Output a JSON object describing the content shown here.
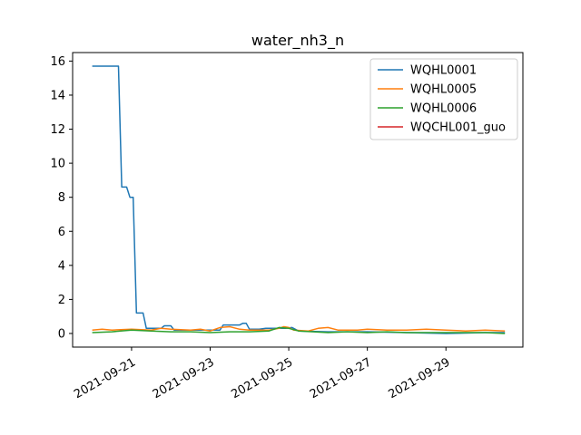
{
  "chart_data": {
    "type": "line",
    "title": "water_nh3_n",
    "xlabel": "",
    "ylabel": "",
    "x_axis_type": "date",
    "xlim": [
      "2021-09-19T12:00",
      "2021-09-30T23:00"
    ],
    "ylim": [
      -0.8,
      16.5
    ],
    "x_ticks": [
      "2021-09-21",
      "2021-09-23",
      "2021-09-25",
      "2021-09-27",
      "2021-09-29"
    ],
    "y_ticks": [
      0,
      2,
      4,
      6,
      8,
      10,
      12,
      14,
      16
    ],
    "grid": false,
    "legend_position": "top-right",
    "series": [
      {
        "name": "WQHL0001",
        "color": "#1f77b4",
        "points": [
          [
            "2021-09-20T00:00",
            15.7
          ],
          [
            "2021-09-20T16:00",
            15.7
          ],
          [
            "2021-09-20T18:00",
            8.6
          ],
          [
            "2021-09-20T21:00",
            8.6
          ],
          [
            "2021-09-20T23:00",
            8.0
          ],
          [
            "2021-09-21T01:00",
            8.0
          ],
          [
            "2021-09-21T03:00",
            1.2
          ],
          [
            "2021-09-21T07:00",
            1.2
          ],
          [
            "2021-09-21T09:00",
            0.3
          ],
          [
            "2021-09-21T18:00",
            0.3
          ],
          [
            "2021-09-21T20:00",
            0.45
          ],
          [
            "2021-09-22T00:00",
            0.45
          ],
          [
            "2021-09-22T02:00",
            0.2
          ],
          [
            "2021-09-23T06:00",
            0.2
          ],
          [
            "2021-09-23T08:00",
            0.5
          ],
          [
            "2021-09-23T18:00",
            0.5
          ],
          [
            "2021-09-23T20:00",
            0.6
          ],
          [
            "2021-09-23T22:00",
            0.6
          ],
          [
            "2021-09-24T00:00",
            0.25
          ],
          [
            "2021-09-24T06:00",
            0.25
          ],
          [
            "2021-09-24T10:00",
            0.3
          ],
          [
            "2021-09-24T22:00",
            0.3
          ],
          [
            "2021-09-25T02:00",
            0.35
          ],
          [
            "2021-09-25T06:00",
            0.15
          ],
          [
            "2021-09-26T00:00",
            0.1
          ],
          [
            "2021-09-27T00:00",
            0.1
          ],
          [
            "2021-09-28T00:00",
            0.05
          ],
          [
            "2021-09-29T00:00",
            0.0
          ],
          [
            "2021-09-30T00:00",
            0.05
          ],
          [
            "2021-09-30T12:00",
            0.05
          ]
        ]
      },
      {
        "name": "WQHL0005",
        "color": "#ff7f0e",
        "points": [
          [
            "2021-09-20T00:00",
            0.2
          ],
          [
            "2021-09-20T06:00",
            0.25
          ],
          [
            "2021-09-20T12:00",
            0.2
          ],
          [
            "2021-09-21T00:00",
            0.25
          ],
          [
            "2021-09-21T12:00",
            0.2
          ],
          [
            "2021-09-21T18:00",
            0.3
          ],
          [
            "2021-09-22T00:00",
            0.25
          ],
          [
            "2021-09-22T12:00",
            0.2
          ],
          [
            "2021-09-22T18:00",
            0.25
          ],
          [
            "2021-09-23T00:00",
            0.15
          ],
          [
            "2021-09-23T06:00",
            0.35
          ],
          [
            "2021-09-23T12:00",
            0.4
          ],
          [
            "2021-09-23T18:00",
            0.25
          ],
          [
            "2021-09-24T00:00",
            0.2
          ],
          [
            "2021-09-24T12:00",
            0.2
          ],
          [
            "2021-09-24T18:00",
            0.3
          ],
          [
            "2021-09-24T21:00",
            0.4
          ],
          [
            "2021-09-25T00:00",
            0.35
          ],
          [
            "2021-09-25T03:00",
            0.2
          ],
          [
            "2021-09-25T12:00",
            0.15
          ],
          [
            "2021-09-25T18:00",
            0.3
          ],
          [
            "2021-09-26T00:00",
            0.35
          ],
          [
            "2021-09-26T06:00",
            0.2
          ],
          [
            "2021-09-26T18:00",
            0.2
          ],
          [
            "2021-09-27T00:00",
            0.25
          ],
          [
            "2021-09-27T12:00",
            0.2
          ],
          [
            "2021-09-28T00:00",
            0.2
          ],
          [
            "2021-09-28T12:00",
            0.25
          ],
          [
            "2021-09-29T00:00",
            0.2
          ],
          [
            "2021-09-29T12:00",
            0.15
          ],
          [
            "2021-09-30T00:00",
            0.2
          ],
          [
            "2021-09-30T12:00",
            0.15
          ]
        ]
      },
      {
        "name": "WQHL0006",
        "color": "#2ca02c",
        "points": [
          [
            "2021-09-20T00:00",
            0.05
          ],
          [
            "2021-09-20T12:00",
            0.1
          ],
          [
            "2021-09-21T00:00",
            0.2
          ],
          [
            "2021-09-21T12:00",
            0.15
          ],
          [
            "2021-09-22T00:00",
            0.1
          ],
          [
            "2021-09-22T12:00",
            0.1
          ],
          [
            "2021-09-23T00:00",
            0.05
          ],
          [
            "2021-09-23T12:00",
            0.1
          ],
          [
            "2021-09-24T00:00",
            0.1
          ],
          [
            "2021-09-24T12:00",
            0.15
          ],
          [
            "2021-09-24T18:00",
            0.35
          ],
          [
            "2021-09-25T00:00",
            0.3
          ],
          [
            "2021-09-25T06:00",
            0.15
          ],
          [
            "2021-09-26T00:00",
            0.05
          ],
          [
            "2021-09-26T12:00",
            0.1
          ],
          [
            "2021-09-27T00:00",
            0.05
          ],
          [
            "2021-09-27T12:00",
            0.1
          ],
          [
            "2021-09-28T00:00",
            0.05
          ],
          [
            "2021-09-28T12:00",
            0.05
          ],
          [
            "2021-09-29T00:00",
            0.05
          ],
          [
            "2021-09-29T12:00",
            0.05
          ],
          [
            "2021-09-30T00:00",
            0.05
          ],
          [
            "2021-09-30T12:00",
            0.0
          ]
        ]
      },
      {
        "name": "WQCHL001_guo",
        "color": "#d62728",
        "points": []
      }
    ]
  }
}
